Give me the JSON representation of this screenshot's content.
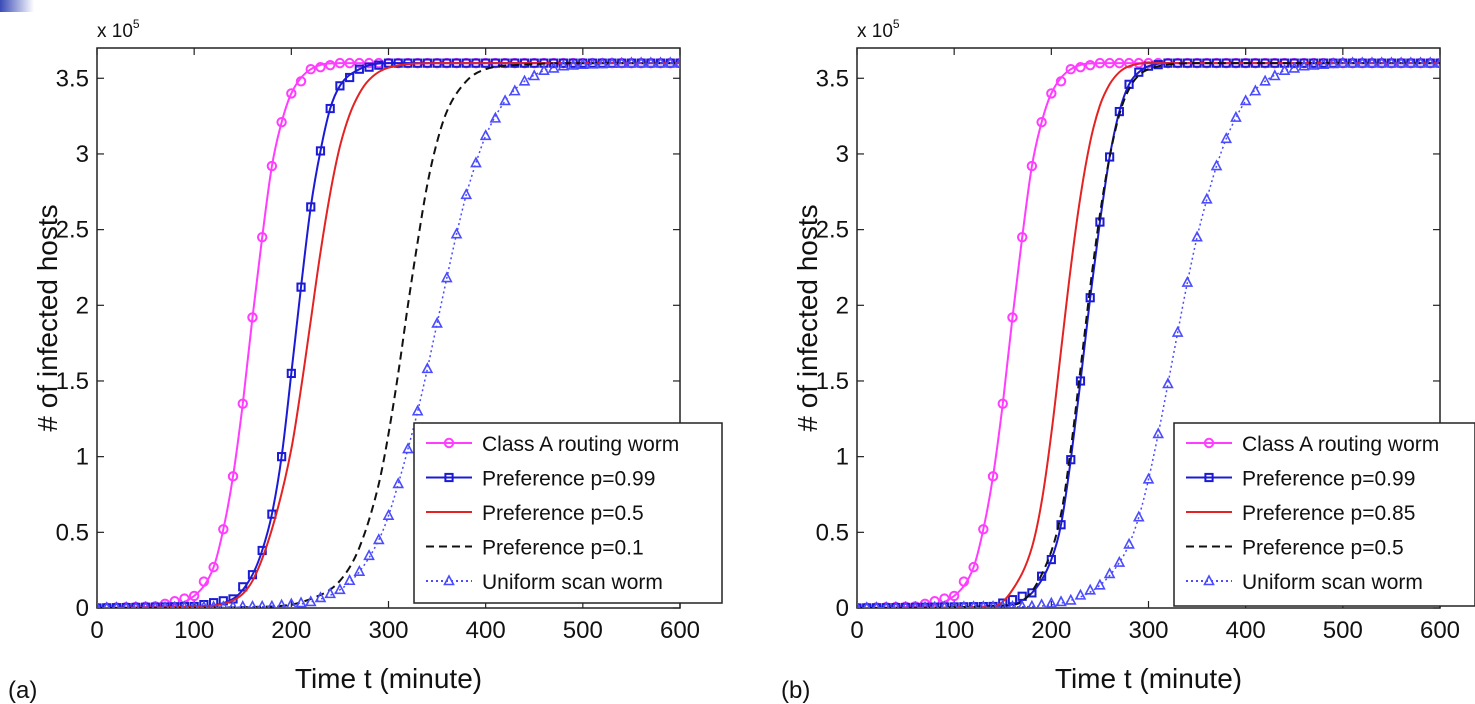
{
  "colors": {
    "magenta": "#ff3cff",
    "blue": "#1b1bd6",
    "red": "#e52222",
    "black": "#111111",
    "lightblue": "#4b4bff"
  },
  "chart_data": [
    {
      "type": "line",
      "panel_label": "(a)",
      "xlabel": "Time t (minute)",
      "ylabel": "# of infected hosts",
      "y_multiplier": "x 10",
      "y_multiplier_exp": "5",
      "xlim": [
        0,
        600
      ],
      "ylim": [
        0,
        3.7
      ],
      "xticks": [
        0,
        100,
        200,
        300,
        400,
        500,
        600
      ],
      "yticks": [
        0,
        0.5,
        1,
        1.5,
        2,
        2.5,
        3,
        3.5
      ],
      "xtick_labels": [
        "0",
        "100",
        "200",
        "300",
        "400",
        "500",
        "600"
      ],
      "ytick_labels": [
        "0",
        "0.5",
        "1",
        "1.5",
        "2",
        "2.5",
        "3",
        "3.5"
      ],
      "grid": false,
      "legend_position": "lower-right",
      "series": [
        {
          "name": "Class A routing worm",
          "color_key": "magenta",
          "style": "solid",
          "marker": "circle",
          "x": [
            0,
            60,
            100,
            120,
            130,
            140,
            150,
            160,
            170,
            180,
            190,
            200,
            220,
            250,
            300,
            600
          ],
          "y": [
            0,
            0.01,
            0.08,
            0.27,
            0.52,
            0.87,
            1.35,
            1.92,
            2.45,
            2.92,
            3.21,
            3.4,
            3.56,
            3.6,
            3.6,
            3.6
          ]
        },
        {
          "name": "Preference p=0.99",
          "color_key": "blue",
          "style": "solid",
          "marker": "square",
          "x": [
            0,
            100,
            140,
            160,
            170,
            180,
            190,
            200,
            210,
            220,
            230,
            240,
            250,
            270,
            300,
            350,
            600
          ],
          "y": [
            0,
            0.01,
            0.06,
            0.22,
            0.38,
            0.62,
            1.0,
            1.55,
            2.12,
            2.65,
            3.02,
            3.3,
            3.45,
            3.56,
            3.6,
            3.6,
            3.6
          ]
        },
        {
          "name": "Preference p=0.5",
          "color_key": "red",
          "style": "solid",
          "marker": "none",
          "x": [
            0,
            100,
            140,
            160,
            180,
            200,
            210,
            220,
            230,
            240,
            250,
            260,
            270,
            280,
            300,
            350,
            600
          ],
          "y": [
            0,
            0.01,
            0.05,
            0.18,
            0.52,
            1.05,
            1.45,
            1.9,
            2.35,
            2.74,
            3.05,
            3.26,
            3.4,
            3.49,
            3.57,
            3.6,
            3.6
          ]
        },
        {
          "name": "Preference p=0.1",
          "color_key": "black",
          "style": "dashed",
          "marker": "none",
          "x": [
            0,
            180,
            220,
            250,
            270,
            290,
            300,
            310,
            320,
            330,
            340,
            350,
            360,
            380,
            400,
            440,
            500,
            600
          ],
          "y": [
            0,
            0.01,
            0.06,
            0.18,
            0.4,
            0.82,
            1.15,
            1.55,
            2.0,
            2.42,
            2.8,
            3.08,
            3.28,
            3.48,
            3.56,
            3.59,
            3.6,
            3.6
          ]
        },
        {
          "name": "Uniform scan worm",
          "color_key": "lightblue",
          "style": "dotted",
          "marker": "triangle",
          "x": [
            0,
            180,
            220,
            250,
            270,
            290,
            300,
            310,
            320,
            330,
            340,
            350,
            360,
            370,
            380,
            390,
            400,
            420,
            440,
            460,
            480,
            500,
            550,
            600
          ],
          "y": [
            0,
            0.01,
            0.04,
            0.12,
            0.24,
            0.45,
            0.61,
            0.82,
            1.05,
            1.3,
            1.58,
            1.88,
            2.18,
            2.47,
            2.73,
            2.94,
            3.12,
            3.35,
            3.48,
            3.55,
            3.58,
            3.59,
            3.6,
            3.6
          ]
        }
      ]
    },
    {
      "type": "line",
      "panel_label": "(b)",
      "xlabel": "Time t (minute)",
      "ylabel": "# of infected hosts",
      "y_multiplier": "x 10",
      "y_multiplier_exp": "5",
      "xlim": [
        0,
        600
      ],
      "ylim": [
        0,
        3.7
      ],
      "xticks": [
        0,
        100,
        200,
        300,
        400,
        500,
        600
      ],
      "yticks": [
        0,
        0.5,
        1,
        1.5,
        2,
        2.5,
        3,
        3.5
      ],
      "xtick_labels": [
        "0",
        "100",
        "200",
        "300",
        "400",
        "500",
        "600"
      ],
      "ytick_labels": [
        "0",
        "0.5",
        "1",
        "1.5",
        "2",
        "2.5",
        "3",
        "3.5"
      ],
      "grid": false,
      "legend_position": "lower-right",
      "series": [
        {
          "name": "Class A routing worm",
          "color_key": "magenta",
          "style": "solid",
          "marker": "circle",
          "x": [
            0,
            60,
            100,
            120,
            130,
            140,
            150,
            160,
            170,
            180,
            190,
            200,
            220,
            250,
            300,
            600
          ],
          "y": [
            0,
            0.01,
            0.08,
            0.27,
            0.52,
            0.87,
            1.35,
            1.92,
            2.45,
            2.92,
            3.21,
            3.4,
            3.56,
            3.6,
            3.6,
            3.6
          ]
        },
        {
          "name": "Preference p=0.99",
          "color_key": "blue",
          "style": "solid",
          "marker": "square",
          "x": [
            0,
            140,
            180,
            200,
            210,
            220,
            230,
            240,
            250,
            260,
            270,
            280,
            290,
            300,
            320,
            350,
            600
          ],
          "y": [
            0,
            0.01,
            0.1,
            0.32,
            0.55,
            0.98,
            1.5,
            2.05,
            2.55,
            2.98,
            3.28,
            3.46,
            3.54,
            3.58,
            3.6,
            3.6,
            3.6
          ]
        },
        {
          "name": "Preference p=0.85",
          "color_key": "red",
          "style": "solid",
          "marker": "none",
          "x": [
            0,
            140,
            160,
            180,
            190,
            200,
            210,
            220,
            230,
            240,
            250,
            260,
            270,
            280,
            300,
            600
          ],
          "y": [
            0,
            0.01,
            0.12,
            0.4,
            0.7,
            1.15,
            1.7,
            2.25,
            2.72,
            3.08,
            3.32,
            3.46,
            3.54,
            3.58,
            3.6,
            3.6
          ]
        },
        {
          "name": "Preference p=0.5",
          "color_key": "black",
          "style": "dashed",
          "marker": "none",
          "x": [
            0,
            160,
            190,
            210,
            220,
            230,
            240,
            250,
            260,
            270,
            280,
            290,
            300,
            320,
            350,
            600
          ],
          "y": [
            0,
            0.02,
            0.22,
            0.62,
            1.05,
            1.58,
            2.12,
            2.6,
            2.98,
            3.26,
            3.43,
            3.52,
            3.56,
            3.59,
            3.6,
            3.6
          ]
        },
        {
          "name": "Uniform scan worm",
          "color_key": "lightblue",
          "style": "dotted",
          "marker": "triangle",
          "x": [
            0,
            180,
            220,
            250,
            270,
            280,
            290,
            300,
            310,
            320,
            330,
            340,
            350,
            360,
            370,
            380,
            390,
            400,
            420,
            440,
            460,
            480,
            500,
            550,
            600
          ],
          "y": [
            0,
            0.01,
            0.05,
            0.15,
            0.3,
            0.42,
            0.6,
            0.85,
            1.15,
            1.48,
            1.82,
            2.15,
            2.45,
            2.7,
            2.92,
            3.1,
            3.24,
            3.35,
            3.48,
            3.55,
            3.58,
            3.59,
            3.6,
            3.6,
            3.6
          ]
        }
      ]
    }
  ]
}
